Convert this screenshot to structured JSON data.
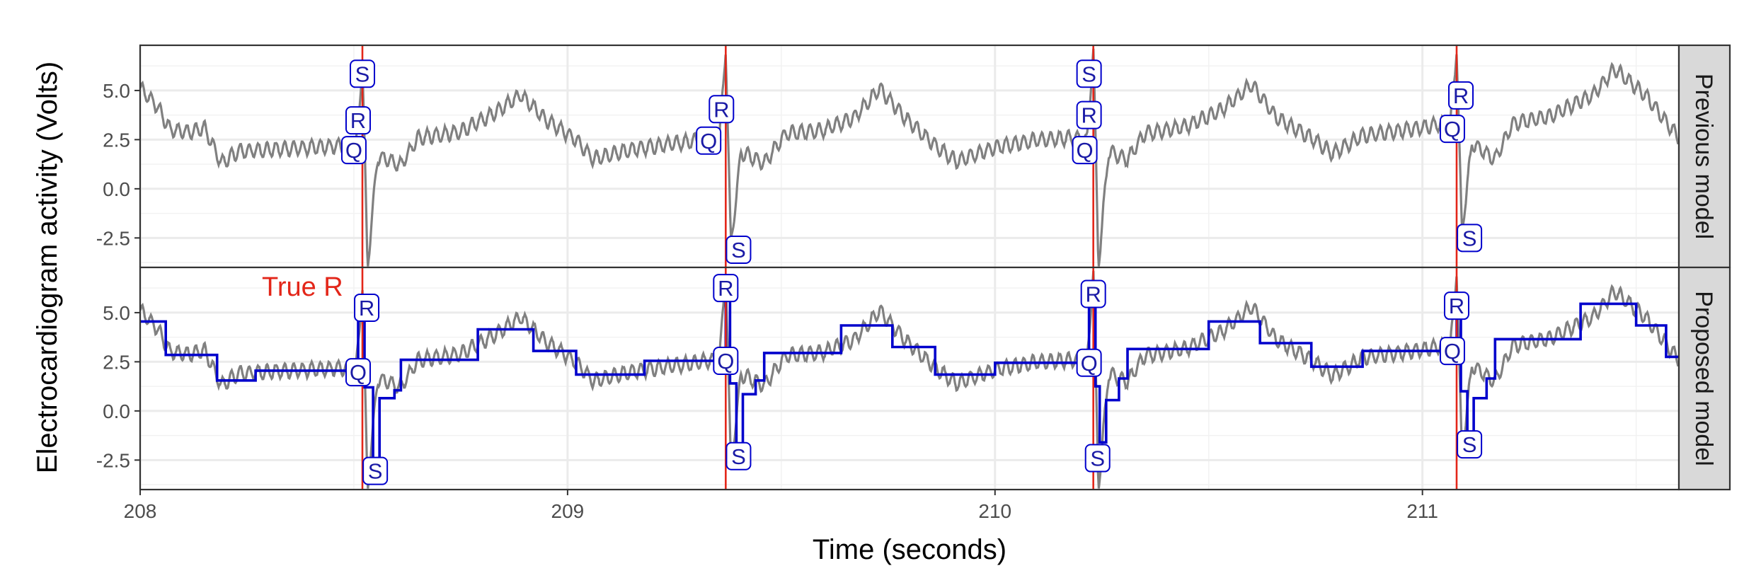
{
  "chart_data": {
    "type": "line",
    "xlabel": "Time (seconds)",
    "ylabel": "Electrocardiogram activity (Volts)",
    "xlim": [
      208.0,
      211.6
    ],
    "ylim": [
      -4.0,
      7.3
    ],
    "xticks": [
      208,
      209,
      210,
      211
    ],
    "yticks": [
      -2.5,
      0.0,
      2.5,
      5.0
    ],
    "ytick_labels": [
      "-2.5",
      "0.0",
      "2.5",
      "5.0"
    ],
    "grid": true,
    "true_r_label": "True R",
    "true_r_times": [
      208.52,
      209.37,
      210.23,
      211.08
    ],
    "colors": {
      "ecg": "#808080",
      "model": "#0000cc",
      "true_r": "#e32619",
      "strip_bg": "#d9d9d9",
      "label_text": "#1a1aa6"
    },
    "beats": [
      208.52,
      209.37,
      210.23,
      211.08
    ],
    "panels": [
      {
        "strip": "Previous model",
        "labels": [
          {
            "text": "Q",
            "x": 208.5,
            "y": 1.97
          },
          {
            "text": "R",
            "x": 208.51,
            "y": 3.48
          },
          {
            "text": "S",
            "x": 208.52,
            "y": 5.85
          },
          {
            "text": "Q",
            "x": 209.33,
            "y": 2.45
          },
          {
            "text": "R",
            "x": 209.36,
            "y": 4.05
          },
          {
            "text": "S",
            "x": 209.4,
            "y": -3.1
          },
          {
            "text": "Q",
            "x": 210.21,
            "y": 1.97
          },
          {
            "text": "R",
            "x": 210.22,
            "y": 3.75
          },
          {
            "text": "S",
            "x": 210.22,
            "y": 5.85
          },
          {
            "text": "Q",
            "x": 211.07,
            "y": 3.05
          },
          {
            "text": "R",
            "x": 211.09,
            "y": 4.75
          },
          {
            "text": "S",
            "x": 211.11,
            "y": -2.5
          }
        ]
      },
      {
        "strip": "Proposed model",
        "labels": [
          {
            "text": "R",
            "x": 208.53,
            "y": 5.25
          },
          {
            "text": "Q",
            "x": 208.51,
            "y": 1.97
          },
          {
            "text": "S",
            "x": 208.55,
            "y": -3.05
          },
          {
            "text": "R",
            "x": 209.37,
            "y": 6.25
          },
          {
            "text": "Q",
            "x": 209.37,
            "y": 2.55
          },
          {
            "text": "S",
            "x": 209.4,
            "y": -2.3
          },
          {
            "text": "R",
            "x": 210.23,
            "y": 5.95
          },
          {
            "text": "Q",
            "x": 210.22,
            "y": 2.45
          },
          {
            "text": "S",
            "x": 210.24,
            "y": -2.4
          },
          {
            "text": "R",
            "x": 211.08,
            "y": 5.35
          },
          {
            "text": "Q",
            "x": 211.07,
            "y": 3.05
          },
          {
            "text": "S",
            "x": 211.11,
            "y": -1.7
          }
        ],
        "segments": [
          {
            "x0": 208.0,
            "x1": 208.06,
            "y": 4.55
          },
          {
            "x0": 208.06,
            "x1": 208.18,
            "y": 2.85
          },
          {
            "x0": 208.18,
            "x1": 208.27,
            "y": 1.55
          },
          {
            "x0": 208.27,
            "x1": 208.49,
            "y": 2.05
          },
          {
            "x0": 208.49,
            "x1": 208.51,
            "y": 2.35
          },
          {
            "x0": 208.51,
            "x1": 208.525,
            "y": 5.1
          },
          {
            "x0": 208.525,
            "x1": 208.545,
            "y": 1.2
          },
          {
            "x0": 208.545,
            "x1": 208.56,
            "y": -2.85
          },
          {
            "x0": 208.56,
            "x1": 208.595,
            "y": 0.65
          },
          {
            "x0": 208.595,
            "x1": 208.61,
            "y": 1.05
          },
          {
            "x0": 208.61,
            "x1": 208.79,
            "y": 2.6
          },
          {
            "x0": 208.79,
            "x1": 208.92,
            "y": 4.15
          },
          {
            "x0": 208.92,
            "x1": 209.02,
            "y": 3.05
          },
          {
            "x0": 209.02,
            "x1": 209.18,
            "y": 1.85
          },
          {
            "x0": 209.18,
            "x1": 209.35,
            "y": 2.55
          },
          {
            "x0": 209.35,
            "x1": 209.37,
            "y": 2.85
          },
          {
            "x0": 209.37,
            "x1": 209.38,
            "y": 6.55
          },
          {
            "x0": 209.38,
            "x1": 209.395,
            "y": 1.4
          },
          {
            "x0": 209.395,
            "x1": 209.41,
            "y": -1.8
          },
          {
            "x0": 209.41,
            "x1": 209.44,
            "y": 0.85
          },
          {
            "x0": 209.44,
            "x1": 209.46,
            "y": 1.55
          },
          {
            "x0": 209.46,
            "x1": 209.64,
            "y": 2.95
          },
          {
            "x0": 209.64,
            "x1": 209.76,
            "y": 4.35
          },
          {
            "x0": 209.76,
            "x1": 209.86,
            "y": 3.25
          },
          {
            "x0": 209.86,
            "x1": 210.0,
            "y": 1.85
          },
          {
            "x0": 210.0,
            "x1": 210.2,
            "y": 2.45
          },
          {
            "x0": 210.2,
            "x1": 210.22,
            "y": 2.85
          },
          {
            "x0": 210.22,
            "x1": 210.235,
            "y": 6.25
          },
          {
            "x0": 210.235,
            "x1": 210.245,
            "y": 1.25
          },
          {
            "x0": 210.245,
            "x1": 210.26,
            "y": -1.6
          },
          {
            "x0": 210.26,
            "x1": 210.29,
            "y": 0.55
          },
          {
            "x0": 210.29,
            "x1": 210.31,
            "y": 1.65
          },
          {
            "x0": 210.31,
            "x1": 210.5,
            "y": 3.15
          },
          {
            "x0": 210.5,
            "x1": 210.62,
            "y": 4.55
          },
          {
            "x0": 210.62,
            "x1": 210.74,
            "y": 3.45
          },
          {
            "x0": 210.74,
            "x1": 210.86,
            "y": 2.25
          },
          {
            "x0": 210.86,
            "x1": 211.06,
            "y": 3.05
          },
          {
            "x0": 211.06,
            "x1": 211.08,
            "y": 3.35
          },
          {
            "x0": 211.08,
            "x1": 211.09,
            "y": 5.65
          },
          {
            "x0": 211.09,
            "x1": 211.105,
            "y": 1.0
          },
          {
            "x0": 211.105,
            "x1": 211.12,
            "y": -1.1
          },
          {
            "x0": 211.12,
            "x1": 211.15,
            "y": 0.65
          },
          {
            "x0": 211.15,
            "x1": 211.17,
            "y": 1.65
          },
          {
            "x0": 211.17,
            "x1": 211.37,
            "y": 3.65
          },
          {
            "x0": 211.37,
            "x1": 211.5,
            "y": 5.45
          },
          {
            "x0": 211.5,
            "x1": 211.57,
            "y": 4.35
          },
          {
            "x0": 211.57,
            "x1": 211.6,
            "y": 2.75
          }
        ]
      }
    ]
  }
}
